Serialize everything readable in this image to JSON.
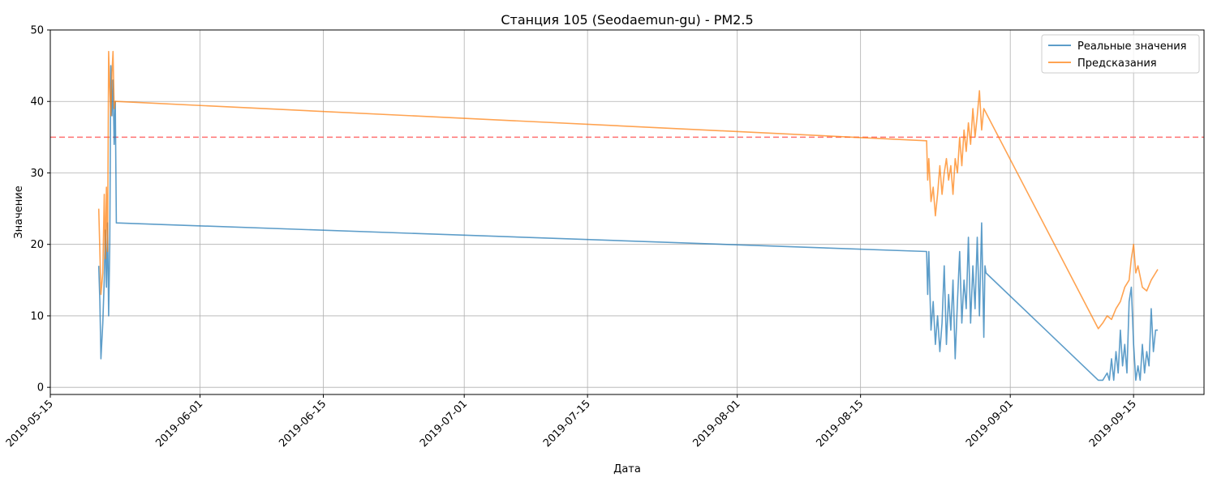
{
  "chart_data": {
    "type": "line",
    "title": "Станция 105 (Seodaemun-gu) - PM2.5",
    "xlabel": "Дата",
    "ylabel": "Значение",
    "xlim": [
      "2019-05-15",
      "2019-09-23"
    ],
    "ylim": [
      -1,
      50
    ],
    "x_ticks": [
      "2019-05-15",
      "2019-06-01",
      "2019-06-15",
      "2019-07-01",
      "2019-07-15",
      "2019-08-01",
      "2019-08-15",
      "2019-09-01",
      "2019-09-15"
    ],
    "y_ticks": [
      0,
      10,
      20,
      30,
      40,
      50
    ],
    "grid": true,
    "legend_position": "top-right",
    "threshold": {
      "value": 35,
      "color": "#ff4d4d",
      "style": "dashed"
    },
    "series": [
      {
        "name": "Реальные значения",
        "color": "#1f77b4",
        "points": [
          [
            "2019-05-20 12:00",
            17
          ],
          [
            "2019-05-20 15:00",
            12
          ],
          [
            "2019-05-20 18:00",
            4
          ],
          [
            "2019-05-20 23:00",
            9
          ],
          [
            "2019-05-21 03:00",
            15
          ],
          [
            "2019-05-21 06:00",
            22
          ],
          [
            "2019-05-21 09:00",
            14
          ],
          [
            "2019-05-21 12:00",
            23
          ],
          [
            "2019-05-21 15:00",
            10
          ],
          [
            "2019-05-21 18:00",
            20
          ],
          [
            "2019-05-21 21:00",
            45
          ],
          [
            "2019-05-22 00:00",
            38
          ],
          [
            "2019-05-22 03:00",
            43
          ],
          [
            "2019-05-22 06:00",
            34
          ],
          [
            "2019-05-22 09:00",
            40
          ],
          [
            "2019-05-22 12:00",
            23
          ],
          [
            "2019-08-22 12:00",
            19
          ],
          [
            "2019-08-22 15:00",
            13
          ],
          [
            "2019-08-22 18:00",
            19
          ],
          [
            "2019-08-23 00:00",
            8
          ],
          [
            "2019-08-23 06:00",
            12
          ],
          [
            "2019-08-23 12:00",
            6
          ],
          [
            "2019-08-23 18:00",
            10
          ],
          [
            "2019-08-24 00:00",
            5
          ],
          [
            "2019-08-24 06:00",
            9
          ],
          [
            "2019-08-24 12:00",
            17
          ],
          [
            "2019-08-24 18:00",
            6
          ],
          [
            "2019-08-25 00:00",
            13
          ],
          [
            "2019-08-25 06:00",
            8
          ],
          [
            "2019-08-25 12:00",
            15
          ],
          [
            "2019-08-25 18:00",
            4
          ],
          [
            "2019-08-26 00:00",
            12
          ],
          [
            "2019-08-26 06:00",
            19
          ],
          [
            "2019-08-26 12:00",
            9
          ],
          [
            "2019-08-26 18:00",
            15
          ],
          [
            "2019-08-27 00:00",
            11
          ],
          [
            "2019-08-27 06:00",
            21
          ],
          [
            "2019-08-27 12:00",
            9
          ],
          [
            "2019-08-27 18:00",
            17
          ],
          [
            "2019-08-28 00:00",
            11
          ],
          [
            "2019-08-28 06:00",
            21
          ],
          [
            "2019-08-28 12:00",
            10
          ],
          [
            "2019-08-28 18:00",
            23
          ],
          [
            "2019-08-29 00:00",
            7
          ],
          [
            "2019-08-29 03:00",
            17
          ],
          [
            "2019-08-29 06:00",
            16
          ],
          [
            "2019-09-11 00:00",
            1
          ],
          [
            "2019-09-11 12:00",
            1
          ],
          [
            "2019-09-12 00:00",
            2
          ],
          [
            "2019-09-12 06:00",
            1
          ],
          [
            "2019-09-12 12:00",
            4
          ],
          [
            "2019-09-12 18:00",
            1
          ],
          [
            "2019-09-13 00:00",
            5
          ],
          [
            "2019-09-13 06:00",
            2
          ],
          [
            "2019-09-13 12:00",
            8
          ],
          [
            "2019-09-13 18:00",
            3
          ],
          [
            "2019-09-14 00:00",
            6
          ],
          [
            "2019-09-14 06:00",
            2
          ],
          [
            "2019-09-14 12:00",
            12
          ],
          [
            "2019-09-14 18:00",
            14
          ],
          [
            "2019-09-15 00:00",
            6
          ],
          [
            "2019-09-15 06:00",
            1
          ],
          [
            "2019-09-15 12:00",
            3
          ],
          [
            "2019-09-15 18:00",
            1
          ],
          [
            "2019-09-16 00:00",
            6
          ],
          [
            "2019-09-16 06:00",
            2
          ],
          [
            "2019-09-16 12:00",
            5
          ],
          [
            "2019-09-16 18:00",
            3
          ],
          [
            "2019-09-17 00:00",
            11
          ],
          [
            "2019-09-17 06:00",
            5
          ],
          [
            "2019-09-17 12:00",
            8
          ],
          [
            "2019-09-17 18:00",
            8
          ]
        ]
      },
      {
        "name": "Предсказания",
        "color": "#ff7f0e",
        "points": [
          [
            "2019-05-20 12:00",
            25
          ],
          [
            "2019-05-20 15:00",
            19
          ],
          [
            "2019-05-20 18:00",
            13
          ],
          [
            "2019-05-20 23:00",
            16
          ],
          [
            "2019-05-21 03:00",
            27
          ],
          [
            "2019-05-21 06:00",
            18
          ],
          [
            "2019-05-21 09:00",
            28
          ],
          [
            "2019-05-21 12:00",
            19
          ],
          [
            "2019-05-21 15:00",
            47
          ],
          [
            "2019-05-21 18:00",
            42
          ],
          [
            "2019-05-21 21:00",
            38
          ],
          [
            "2019-05-22 00:00",
            44
          ],
          [
            "2019-05-22 03:00",
            47
          ],
          [
            "2019-05-22 06:00",
            39
          ],
          [
            "2019-05-22 09:00",
            40
          ],
          [
            "2019-05-22 12:00",
            40
          ],
          [
            "2019-08-22 12:00",
            34.5
          ],
          [
            "2019-08-22 15:00",
            29
          ],
          [
            "2019-08-22 18:00",
            32
          ],
          [
            "2019-08-23 00:00",
            26
          ],
          [
            "2019-08-23 06:00",
            28
          ],
          [
            "2019-08-23 12:00",
            24
          ],
          [
            "2019-08-23 18:00",
            27
          ],
          [
            "2019-08-24 00:00",
            31
          ],
          [
            "2019-08-24 06:00",
            27
          ],
          [
            "2019-08-24 12:00",
            30
          ],
          [
            "2019-08-24 18:00",
            32
          ],
          [
            "2019-08-25 00:00",
            29
          ],
          [
            "2019-08-25 06:00",
            31
          ],
          [
            "2019-08-25 12:00",
            27
          ],
          [
            "2019-08-25 18:00",
            32
          ],
          [
            "2019-08-26 00:00",
            30
          ],
          [
            "2019-08-26 06:00",
            35
          ],
          [
            "2019-08-26 12:00",
            31
          ],
          [
            "2019-08-26 18:00",
            36
          ],
          [
            "2019-08-27 00:00",
            33
          ],
          [
            "2019-08-27 06:00",
            37
          ],
          [
            "2019-08-27 12:00",
            34
          ],
          [
            "2019-08-27 18:00",
            39
          ],
          [
            "2019-08-28 00:00",
            35
          ],
          [
            "2019-08-28 06:00",
            38
          ],
          [
            "2019-08-28 12:00",
            41.5
          ],
          [
            "2019-08-28 18:00",
            36
          ],
          [
            "2019-08-29 00:00",
            39
          ],
          [
            "2019-09-11 00:00",
            8.2
          ],
          [
            "2019-09-11 12:00",
            9
          ],
          [
            "2019-09-12 00:00",
            10
          ],
          [
            "2019-09-12 12:00",
            9.5
          ],
          [
            "2019-09-13 00:00",
            11
          ],
          [
            "2019-09-13 12:00",
            12
          ],
          [
            "2019-09-14 00:00",
            14
          ],
          [
            "2019-09-14 12:00",
            15
          ],
          [
            "2019-09-14 18:00",
            18
          ],
          [
            "2019-09-15 00:00",
            20
          ],
          [
            "2019-09-15 06:00",
            16
          ],
          [
            "2019-09-15 12:00",
            17
          ],
          [
            "2019-09-16 00:00",
            14
          ],
          [
            "2019-09-16 12:00",
            13.5
          ],
          [
            "2019-09-17 00:00",
            15
          ],
          [
            "2019-09-17 12:00",
            16
          ],
          [
            "2019-09-17 18:00",
            16.5
          ]
        ]
      }
    ]
  }
}
